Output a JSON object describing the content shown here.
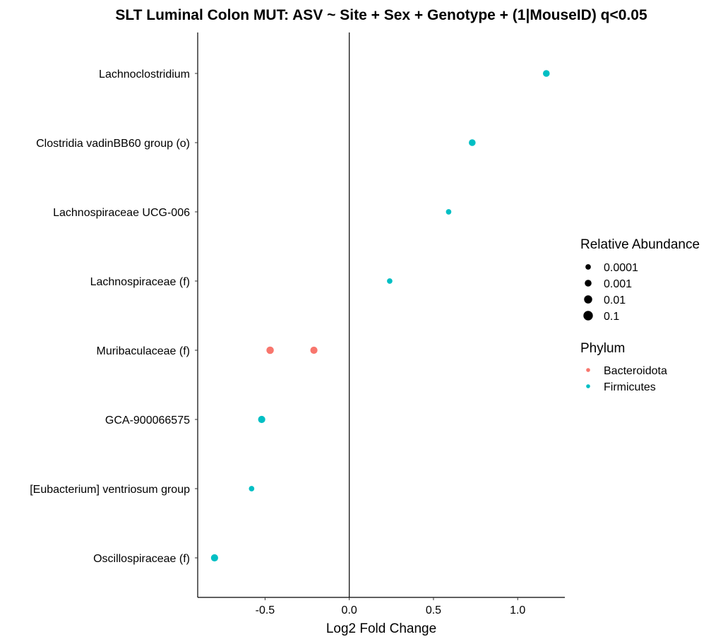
{
  "chart_data": {
    "type": "scatter",
    "title": "SLT Luminal Colon MUT: ASV ~ Site + Sex + Genotype + (1|MouseID) q<0.05",
    "xlabel": "Log2 Fold Change",
    "ylabel": "",
    "xlim": [
      -0.9,
      1.28
    ],
    "xticks": [
      -0.5,
      0.0,
      0.5,
      1.0
    ],
    "xtick_labels": [
      "-0.5",
      "0.0",
      "0.5",
      "1.0"
    ],
    "vline_x": 0,
    "grid": false,
    "categories": [
      "Lachnoclostridium",
      "Clostridia vadinBB60 group (o)",
      "Lachnospiraceae UCG-006",
      "Lachnospiraceae (f)",
      "Muribaculaceae (f)",
      "GCA-900066575",
      "[Eubacterium] ventriosum group",
      "Oscillospiraceae (f)"
    ],
    "points": [
      {
        "taxon": "Lachnoclostridium",
        "x": 1.17,
        "phylum": "Firmicutes",
        "abundance": 0.001
      },
      {
        "taxon": "Clostridia vadinBB60 group (o)",
        "x": 0.73,
        "phylum": "Firmicutes",
        "abundance": 0.001
      },
      {
        "taxon": "Lachnospiraceae UCG-006",
        "x": 0.59,
        "phylum": "Firmicutes",
        "abundance": 0.0001
      },
      {
        "taxon": "Lachnospiraceae (f)",
        "x": 0.24,
        "phylum": "Firmicutes",
        "abundance": 0.0001
      },
      {
        "taxon": "Muribaculaceae (f)",
        "x": -0.47,
        "phylum": "Bacteroidota",
        "abundance": 0.003
      },
      {
        "taxon": "Muribaculaceae (f)",
        "x": -0.21,
        "phylum": "Bacteroidota",
        "abundance": 0.002
      },
      {
        "taxon": "GCA-900066575",
        "x": -0.52,
        "phylum": "Firmicutes",
        "abundance": 0.002
      },
      {
        "taxon": "[Eubacterium] ventriosum group",
        "x": -0.58,
        "phylum": "Firmicutes",
        "abundance": 0.0001
      },
      {
        "taxon": "Oscillospiraceae (f)",
        "x": -0.8,
        "phylum": "Firmicutes",
        "abundance": 0.002
      }
    ],
    "legend": {
      "placement": "right",
      "size": {
        "title": "Relative Abundance",
        "entries": [
          {
            "label": "0.0001",
            "value": 0.0001
          },
          {
            "label": "0.001",
            "value": 0.001
          },
          {
            "label": "0.01",
            "value": 0.01
          },
          {
            "label": "0.1",
            "value": 0.1
          }
        ]
      },
      "color": {
        "title": "Phylum",
        "entries": [
          {
            "label": "Bacteroidota",
            "color": "#F8766D"
          },
          {
            "label": "Firmicutes",
            "color": "#00BFC4"
          }
        ]
      }
    }
  }
}
